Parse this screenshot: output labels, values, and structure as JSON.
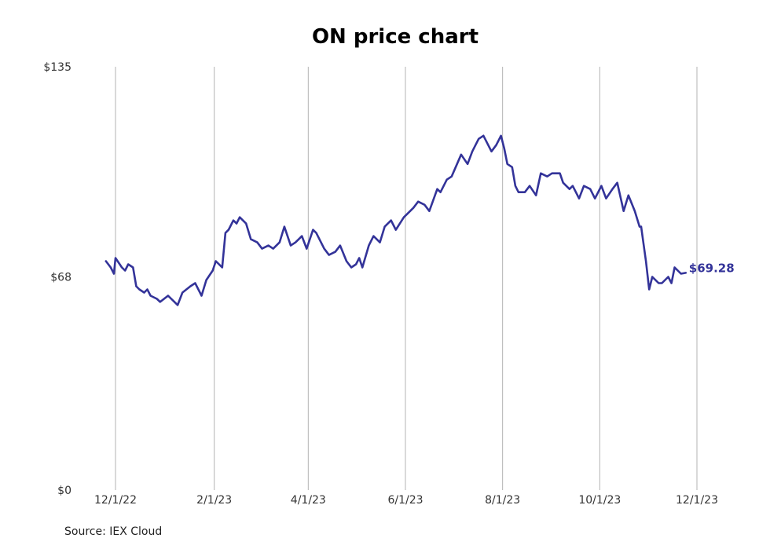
{
  "chart_data": {
    "type": "line",
    "title": "ON price chart",
    "source": "Source: IEX Cloud",
    "ylim": [
      0,
      135
    ],
    "xlim": [
      "2022-11-24",
      "2023-12-01"
    ],
    "yticks": [
      {
        "value": 0,
        "label": "$0"
      },
      {
        "value": 68,
        "label": "$68"
      },
      {
        "value": 135,
        "label": "$135"
      }
    ],
    "xticks": [
      {
        "date": "2022-12-01",
        "label": "12/1/22"
      },
      {
        "date": "2023-02-01",
        "label": "2/1/23"
      },
      {
        "date": "2023-04-01",
        "label": "4/1/23"
      },
      {
        "date": "2023-06-01",
        "label": "6/1/23"
      },
      {
        "date": "2023-08-01",
        "label": "8/1/23"
      },
      {
        "date": "2023-10-01",
        "label": "10/1/23"
      },
      {
        "date": "2023-12-01",
        "label": "12/1/23"
      }
    ],
    "grid": "vertical",
    "line_color": "#333399",
    "last_value_label": "$69.28",
    "series": [
      {
        "x": [
          "2022-11-25",
          "2022-11-28",
          "2022-11-30",
          "2022-12-01",
          "2022-12-05",
          "2022-12-07",
          "2022-12-09",
          "2022-12-12",
          "2022-12-14",
          "2022-12-16",
          "2022-12-19",
          "2022-12-21",
          "2022-12-23",
          "2022-12-27",
          "2022-12-29",
          "2023-01-03",
          "2023-01-05",
          "2023-01-09",
          "2023-01-12",
          "2023-01-17",
          "2023-01-20",
          "2023-01-24",
          "2023-01-27",
          "2023-01-31",
          "2023-02-02",
          "2023-02-06",
          "2023-02-08",
          "2023-02-10",
          "2023-02-13",
          "2023-02-15",
          "2023-02-17",
          "2023-02-21",
          "2023-02-24",
          "2023-02-28",
          "2023-03-03",
          "2023-03-07",
          "2023-03-10",
          "2023-03-14",
          "2023-03-17",
          "2023-03-21",
          "2023-03-24",
          "2023-03-28",
          "2023-03-31",
          "2023-04-04",
          "2023-04-06",
          "2023-04-11",
          "2023-04-14",
          "2023-04-18",
          "2023-04-21",
          "2023-04-25",
          "2023-04-28",
          "2023-05-01",
          "2023-05-03",
          "2023-05-05",
          "2023-05-09",
          "2023-05-12",
          "2023-05-16",
          "2023-05-19",
          "2023-05-23",
          "2023-05-26",
          "2023-05-31",
          "2023-06-02",
          "2023-06-06",
          "2023-06-09",
          "2023-06-13",
          "2023-06-16",
          "2023-06-21",
          "2023-06-23",
          "2023-06-27",
          "2023-06-30",
          "2023-07-06",
          "2023-07-10",
          "2023-07-13",
          "2023-07-17",
          "2023-07-20",
          "2023-07-25",
          "2023-07-28",
          "2023-07-31",
          "2023-08-02",
          "2023-08-04",
          "2023-08-07",
          "2023-08-09",
          "2023-08-11",
          "2023-08-15",
          "2023-08-18",
          "2023-08-22",
          "2023-08-25",
          "2023-08-29",
          "2023-09-01",
          "2023-09-06",
          "2023-09-08",
          "2023-09-12",
          "2023-09-14",
          "2023-09-18",
          "2023-09-21",
          "2023-09-25",
          "2023-09-28",
          "2023-10-02",
          "2023-10-05",
          "2023-10-09",
          "2023-10-12",
          "2023-10-16",
          "2023-10-19",
          "2023-10-23",
          "2023-10-26",
          "2023-10-27",
          "2023-10-30",
          "2023-11-01",
          "2023-11-03",
          "2023-11-07",
          "2023-11-09",
          "2023-11-13",
          "2023-11-15",
          "2023-11-17",
          "2023-11-21",
          "2023-11-24"
        ],
        "y": [
          73,
          71,
          69,
          74,
          71,
          70,
          72,
          71,
          65,
          64,
          63,
          64,
          62,
          61,
          60,
          62,
          61,
          59,
          63,
          65,
          66,
          62,
          67,
          70,
          73,
          71,
          82,
          83,
          86,
          85,
          87,
          85,
          80,
          79,
          77,
          78,
          77,
          79,
          84,
          78,
          79,
          81,
          77,
          83,
          82,
          77,
          75,
          76,
          78,
          73,
          71,
          72,
          74,
          71,
          78,
          81,
          79,
          84,
          86,
          83,
          87,
          88,
          90,
          92,
          91,
          89,
          96,
          95,
          99,
          100,
          107,
          104,
          108,
          112,
          113,
          108,
          110,
          113,
          109,
          104,
          103,
          97,
          95,
          95,
          97,
          94,
          101,
          100,
          101,
          101,
          98,
          96,
          97,
          93,
          97,
          96,
          93,
          97,
          93,
          96,
          98,
          89,
          94,
          89,
          84,
          84,
          73,
          64,
          68,
          66,
          66,
          68,
          66,
          71,
          69,
          69.28
        ]
      }
    ]
  }
}
